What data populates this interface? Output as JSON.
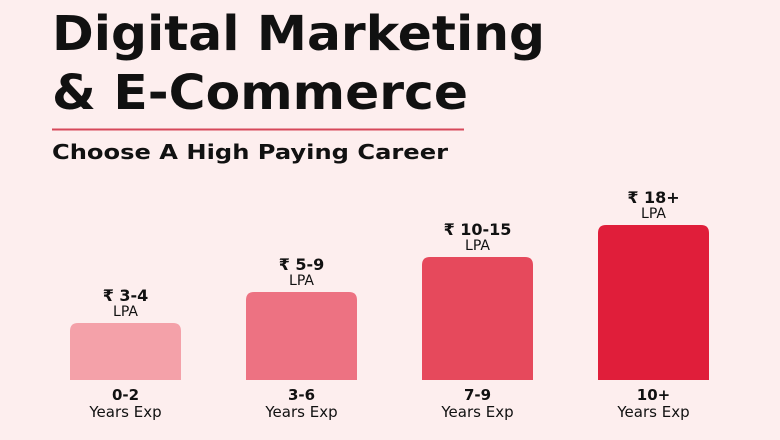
{
  "header": {
    "title_lines": [
      "Digital Marketing",
      "& E-Commerce"
    ],
    "subtitle": "Choose A High Paying Career"
  },
  "bars": [
    {
      "amount": "₹ 3-4",
      "unit": "LPA",
      "range": "0-2",
      "label": "Years Exp",
      "color": "#f4a1a9"
    },
    {
      "amount": "₹ 5-9",
      "unit": "LPA",
      "range": "3-6",
      "label": "Years Exp",
      "color": "#ed7282"
    },
    {
      "amount": "₹ 10-15",
      "unit": "LPA",
      "range": "7-9",
      "label": "Years Exp",
      "color": "#e6495c"
    },
    {
      "amount": "₹ 18+",
      "unit": "LPA",
      "range": "10+",
      "label": "Years Exp",
      "color": "#e01e3a"
    }
  ]
}
